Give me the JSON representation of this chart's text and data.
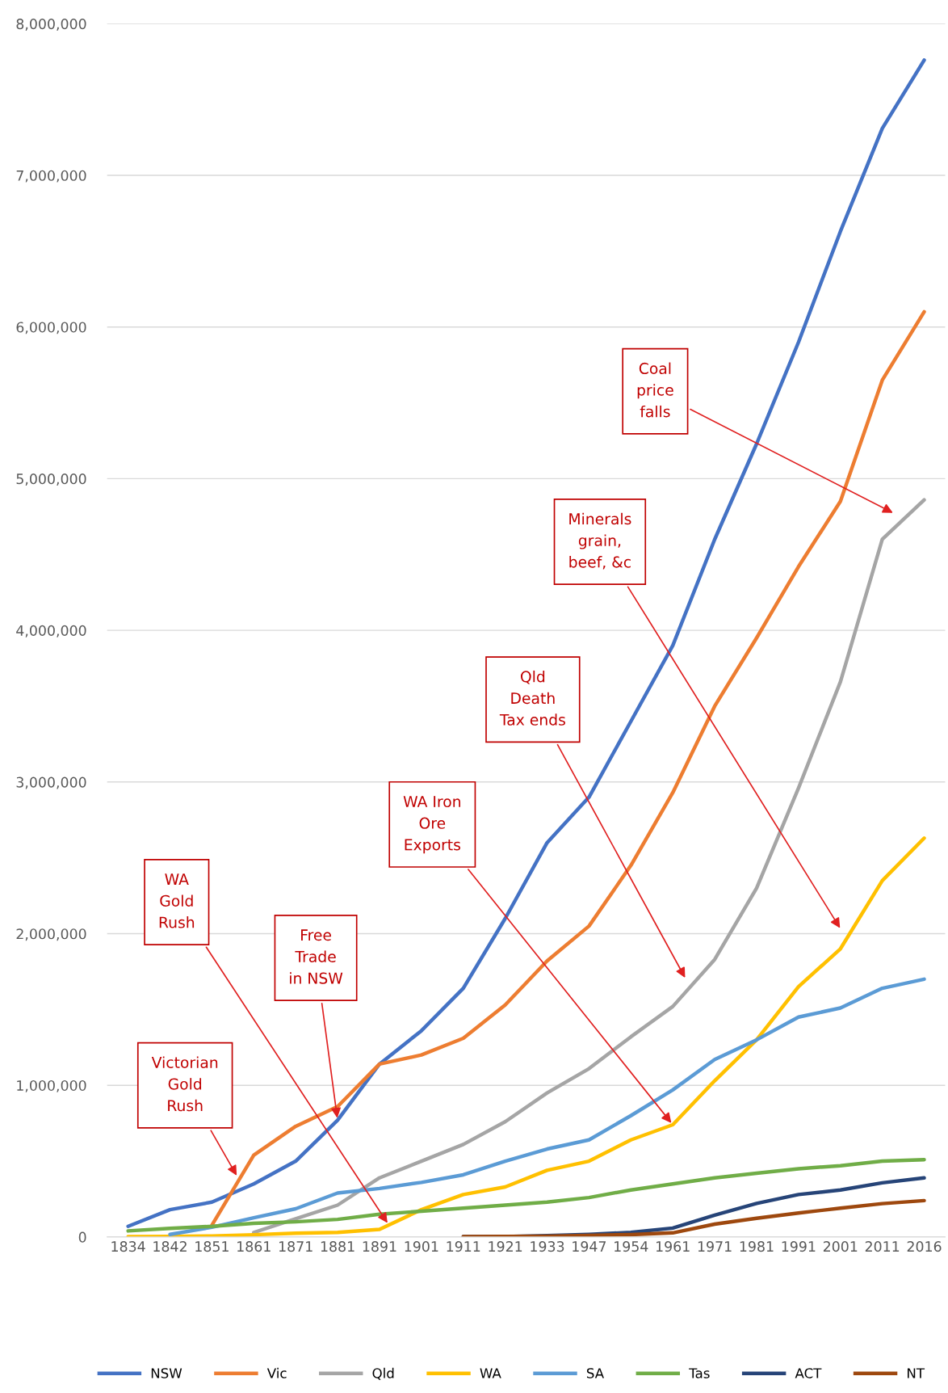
{
  "chart_data": {
    "type": "line",
    "categories": [
      "1834",
      "1842",
      "1851",
      "1861",
      "1871",
      "1881",
      "1891",
      "1901",
      "1911",
      "1921",
      "1933",
      "1947",
      "1954",
      "1961",
      "1971",
      "1981",
      "1991",
      "2001",
      "2011",
      "2016"
    ],
    "series": [
      {
        "name": "NSW",
        "color": "#4472c4",
        "values": [
          70000,
          180000,
          230000,
          350000,
          500000,
          770000,
          1140000,
          1360000,
          1640000,
          2100000,
          2600000,
          2900000,
          3400000,
          3900000,
          4600000,
          5230000,
          5900000,
          6630000,
          7310000,
          7760000
        ]
      },
      {
        "name": "Vic",
        "color": "#ed7d31",
        "values": [
          null,
          null,
          77000,
          540000,
          730000,
          860000,
          1140000,
          1200000,
          1310000,
          1530000,
          1820000,
          2050000,
          2450000,
          2930000,
          3500000,
          3950000,
          4420000,
          4850000,
          5650000,
          6100000
        ]
      },
      {
        "name": "Qld",
        "color": "#a5a5a5",
        "values": [
          null,
          null,
          null,
          30000,
          120000,
          210000,
          390000,
          500000,
          610000,
          760000,
          950000,
          1110000,
          1320000,
          1520000,
          1830000,
          2300000,
          2960000,
          3660000,
          4600000,
          4860000
        ]
      },
      {
        "name": "WA",
        "color": "#ffc000",
        "values": [
          2000,
          4000,
          6000,
          15000,
          25000,
          30000,
          50000,
          180000,
          280000,
          330000,
          440000,
          500000,
          640000,
          740000,
          1030000,
          1300000,
          1650000,
          1900000,
          2350000,
          2630000
        ]
      },
      {
        "name": "SA",
        "color": "#5b9bd5",
        "values": [
          null,
          17000,
          64000,
          127000,
          186000,
          290000,
          320000,
          360000,
          410000,
          500000,
          580000,
          640000,
          800000,
          970000,
          1170000,
          1300000,
          1450000,
          1510000,
          1640000,
          1700000
        ]
      },
      {
        "name": "Tas",
        "color": "#70ad47",
        "values": [
          40000,
          57000,
          70000,
          90000,
          100000,
          116000,
          150000,
          170000,
          190000,
          210000,
          230000,
          260000,
          310000,
          350000,
          390000,
          420000,
          450000,
          470000,
          500000,
          510000
        ]
      },
      {
        "name": "ACT",
        "color": "#264478",
        "values": [
          null,
          null,
          null,
          null,
          null,
          null,
          null,
          null,
          2000,
          3000,
          9000,
          17000,
          30000,
          59000,
          144000,
          221000,
          280000,
          310000,
          357000,
          390000
        ]
      },
      {
        "name": "NT",
        "color": "#9e480e",
        "values": [
          null,
          null,
          null,
          null,
          null,
          null,
          null,
          null,
          3000,
          4000,
          5000,
          11000,
          16000,
          27000,
          85000,
          123000,
          158000,
          190000,
          220000,
          240000
        ]
      }
    ],
    "ylim": [
      0,
      8000000
    ],
    "yticks": [
      0,
      {
        "value": 1000000,
        "label": "1,000,000"
      },
      {
        "value": 2000000,
        "label": "2,000,000"
      },
      {
        "value": 3000000,
        "label": "3,000,000"
      },
      {
        "value": 4000000,
        "label": "4,000,000"
      },
      {
        "value": 5000000,
        "label": "5,000,000"
      },
      {
        "value": 6000000,
        "label": "6,000,000"
      },
      {
        "value": 7000000,
        "label": "7,000,000"
      },
      {
        "value": 8000000,
        "label": "8,000,000"
      }
    ],
    "grid": "y",
    "legend": "bottom",
    "marker": "none",
    "line_style": "solid",
    "annotations": [
      "Coal\nprice\nfalls",
      "Minerals\ngrain,\nbeef, &c",
      "Qld\nDeath\nTax ends",
      {
        "text": "WA Iron\nOre\nExports",
        "x": "1961",
        "y": 740000
      },
      "WA\nGold\nRush",
      {
        "text": "Free\nTrade\nin NSW",
        "x": "1881",
        "y": 770000
      },
      "Victorian\nGold\nRush"
    ]
  }
}
